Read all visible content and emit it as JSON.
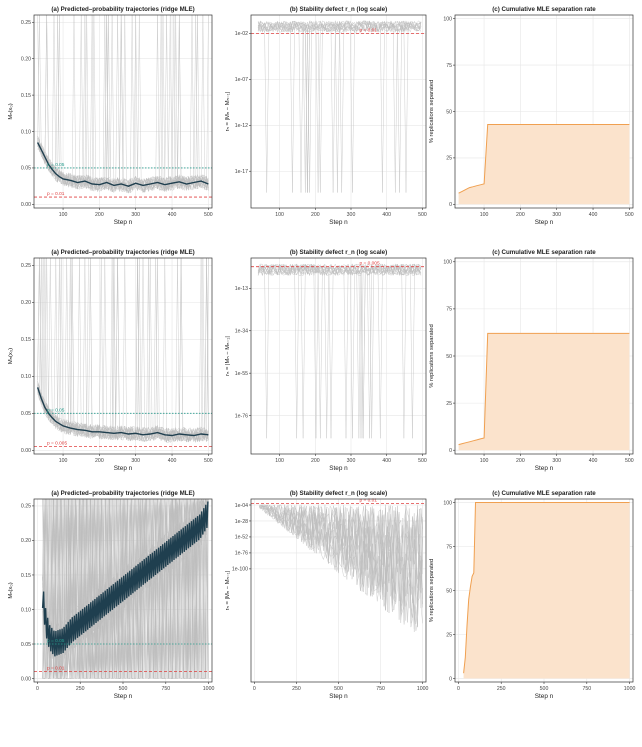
{
  "colors": {
    "trajectory_mean": "#1f3f4f",
    "trajectory_rep": "#bdbdbd",
    "ref_line_teal": "#2a9d8f",
    "ref_line_red": "#e04040",
    "separation_line": "#f0a050",
    "separation_fill": "#fbe3cc",
    "grid": "#e6e6e6",
    "panel_border": "#333333"
  },
  "rows": [
    {
      "panels": [
        {
          "title": "(a) Predicted–probability trajectories (ridge MLE)",
          "xlabel": "Step n",
          "ylabel": "Mₙ(x₀)",
          "xticks": [
            "100",
            "200",
            "300",
            "400",
            "500"
          ],
          "yticks": [
            "0.00",
            "0.05",
            "0.10",
            "0.15",
            "0.20",
            "0.25"
          ],
          "ref_labels": [
            "p = 0.05",
            "p = 0.01"
          ]
        },
        {
          "title": "(b) Stability defect r_n (log scale)",
          "xlabel": "Step n",
          "ylabel": "rₙ = |Mₙ − Mₙ₋₁|",
          "xticks": [
            "100",
            "200",
            "300",
            "400",
            "500"
          ],
          "yticks": [
            "1e-02",
            "1e-07",
            "1e-12",
            "1e-17"
          ],
          "ref_labels": [
            "p = 0.01"
          ]
        },
        {
          "title": "(c) Cumulative MLE separation rate",
          "xlabel": "Step n",
          "ylabel": "% replications separated",
          "xticks": [
            "100",
            "200",
            "300",
            "400",
            "500"
          ],
          "yticks": [
            "0",
            "25",
            "50",
            "75",
            "100"
          ],
          "ref_labels": []
        }
      ]
    },
    {
      "panels": [
        {
          "title": "(a) Predicted–probability trajectories (ridge MLE)",
          "xlabel": "Step n",
          "ylabel": "Mₙ(x₀)",
          "xticks": [
            "100",
            "200",
            "300",
            "400",
            "500"
          ],
          "yticks": [
            "0.00",
            "0.05",
            "0.10",
            "0.15",
            "0.20",
            "0.25"
          ],
          "ref_labels": [
            "p = 0.05",
            "p = 0.005"
          ]
        },
        {
          "title": "(b) Stability defect r_n (log scale)",
          "xlabel": "Step n",
          "ylabel": "rₙ = |Mₙ − Mₙ₋₁|",
          "xticks": [
            "100",
            "200",
            "300",
            "400",
            "500"
          ],
          "yticks": [
            "1e-13",
            "1e-34",
            "1e-55",
            "1e-76"
          ],
          "ref_labels": [
            "p = 0.005"
          ]
        },
        {
          "title": "(c) Cumulative MLE separation rate",
          "xlabel": "Step n",
          "ylabel": "% replications separated",
          "xticks": [
            "100",
            "200",
            "300",
            "400",
            "500"
          ],
          "yticks": [
            "0",
            "25",
            "50",
            "75",
            "100"
          ],
          "ref_labels": []
        }
      ]
    },
    {
      "panels": [
        {
          "title": "(a) Predicted–probability trajectories (ridge MLE)",
          "xlabel": "Step n",
          "ylabel": "Mₙ(x₀)",
          "xticks": [
            "0",
            "250",
            "500",
            "750",
            "1000"
          ],
          "yticks": [
            "0.00",
            "0.05",
            "0.10",
            "0.15",
            "0.20",
            "0.25"
          ],
          "ref_labels": [
            "p = 0.05",
            "p = 0.01"
          ]
        },
        {
          "title": "(b) Stability defect r_n (log scale)",
          "xlabel": "Step n",
          "ylabel": "rₙ = |Mₙ − Mₙ₋₁|",
          "xticks": [
            "0",
            "250",
            "500",
            "750",
            "1000"
          ],
          "yticks": [
            "1e-04",
            "1e-28",
            "1e-52",
            "1e-76",
            "1e-100"
          ],
          "ref_labels": [
            "p = 0.01"
          ]
        },
        {
          "title": "(c) Cumulative MLE separation rate",
          "xlabel": "Step n",
          "ylabel": "% replications separated",
          "xticks": [
            "0",
            "250",
            "500",
            "750",
            "1000"
          ],
          "yticks": [
            "0",
            "25",
            "50",
            "75",
            "100"
          ],
          "ref_labels": []
        }
      ]
    }
  ],
  "chart_data": [
    {
      "type": "line",
      "title": "(a) Predicted–probability trajectories (ridge MLE)",
      "xlabel": "Step n",
      "ylabel": "Mₙ(x₀)",
      "xlim": [
        20,
        510
      ],
      "ylim": [
        -0.005,
        0.26
      ],
      "reference_lines": [
        {
          "label": "p = 0.05",
          "y": 0.05,
          "style": "dotted",
          "color": "#2a9d8f"
        },
        {
          "label": "p = 0.01",
          "y": 0.01,
          "style": "dashed",
          "color": "#e04040"
        }
      ],
      "series": [
        {
          "x": [
            30,
            40,
            50,
            60,
            70,
            80,
            90,
            100,
            120,
            140,
            160,
            180,
            200,
            220,
            240,
            260,
            280,
            300,
            320,
            340,
            360,
            380,
            400,
            420,
            440,
            460,
            480,
            500
          ],
          "values": [
            0.085,
            0.075,
            0.065,
            0.055,
            0.048,
            0.042,
            0.038,
            0.035,
            0.033,
            0.03,
            0.032,
            0.028,
            0.027,
            0.03,
            0.026,
            0.028,
            0.025,
            0.029,
            0.026,
            0.028,
            0.03,
            0.027,
            0.029,
            0.031,
            0.028,
            0.03,
            0.032,
            0.028
          ]
        }
      ]
    },
    {
      "type": "line",
      "title": "(b) Stability defect r_n (log scale)",
      "xlabel": "Step n",
      "ylabel": "rₙ = |Mₙ − Mₙ₋₁|",
      "scale": "log",
      "xlim": [
        20,
        510
      ],
      "ylim_log10": [
        -21,
        0
      ],
      "reference_lines": [
        {
          "label": "p = 0.01",
          "y": 0.01,
          "style": "dashed",
          "color": "#e04040"
        }
      ],
      "series": []
    },
    {
      "type": "area",
      "title": "(c) Cumulative MLE separation rate",
      "xlabel": "Step n",
      "ylabel": "% replications separated",
      "xlim": [
        20,
        510
      ],
      "ylim": [
        -2,
        102
      ],
      "series": [
        {
          "x": [
            30,
            40,
            50,
            60,
            70,
            80,
            90,
            100,
            110,
            500
          ],
          "values": [
            6,
            7,
            8,
            9,
            9.5,
            10,
            10.5,
            11,
            43,
            43
          ]
        }
      ]
    },
    {
      "type": "line",
      "title": "(a) Predicted–probability trajectories (ridge MLE)",
      "xlabel": "Step n",
      "ylabel": "Mₙ(x₀)",
      "xlim": [
        20,
        510
      ],
      "ylim": [
        -0.005,
        0.26
      ],
      "reference_lines": [
        {
          "label": "p = 0.05",
          "y": 0.05,
          "style": "dotted",
          "color": "#2a9d8f"
        },
        {
          "label": "p = 0.005",
          "y": 0.005,
          "style": "dashed",
          "color": "#e04040"
        }
      ],
      "series": [
        {
          "x": [
            30,
            40,
            50,
            60,
            70,
            80,
            90,
            100,
            120,
            140,
            160,
            180,
            200,
            220,
            240,
            260,
            280,
            300,
            320,
            340,
            360,
            380,
            400,
            420,
            440,
            460,
            480,
            500
          ],
          "values": [
            0.085,
            0.07,
            0.058,
            0.05,
            0.044,
            0.039,
            0.036,
            0.033,
            0.03,
            0.028,
            0.027,
            0.025,
            0.025,
            0.024,
            0.023,
            0.024,
            0.022,
            0.023,
            0.021,
            0.022,
            0.024,
            0.021,
            0.02,
            0.022,
            0.021,
            0.02,
            0.022,
            0.021
          ]
        }
      ]
    },
    {
      "type": "line",
      "title": "(b) Stability defect r_n (log scale)",
      "xlabel": "Step n",
      "ylabel": "rₙ = |Mₙ − Mₙ₋₁|",
      "scale": "log",
      "xlim": [
        20,
        510
      ],
      "ylim_log10": [
        -95,
        2
      ],
      "reference_lines": [
        {
          "label": "p = 0.005",
          "y": 0.005,
          "style": "dashed",
          "color": "#e04040"
        }
      ],
      "series": []
    },
    {
      "type": "area",
      "title": "(c) Cumulative MLE separation rate",
      "xlabel": "Step n",
      "ylabel": "% replications separated",
      "xlim": [
        20,
        510
      ],
      "ylim": [
        -2,
        102
      ],
      "series": [
        {
          "x": [
            30,
            40,
            50,
            60,
            70,
            80,
            90,
            100,
            110,
            500
          ],
          "values": [
            3,
            3.5,
            4,
            4.5,
            5,
            5.5,
            6,
            6.5,
            62,
            62
          ]
        }
      ]
    },
    {
      "type": "line",
      "title": "(a) Predicted–probability trajectories (ridge MLE)",
      "xlabel": "Step n",
      "ylabel": "Mₙ(x₀)",
      "xlim": [
        -20,
        1020
      ],
      "ylim": [
        -0.005,
        0.26
      ],
      "reference_lines": [
        {
          "label": "p = 0.05",
          "y": 0.05,
          "style": "dotted",
          "color": "#2a9d8f"
        },
        {
          "label": "p = 0.01",
          "y": 0.01,
          "style": "dashed",
          "color": "#e04040"
        }
      ],
      "series": [
        {
          "x": [
            30,
            50,
            70,
            100,
            150,
            200,
            250,
            300,
            350,
            400,
            450,
            500,
            550,
            600,
            650,
            700,
            750,
            800,
            850,
            900,
            950,
            1000
          ],
          "values": [
            0.12,
            0.08,
            0.06,
            0.05,
            0.055,
            0.07,
            0.08,
            0.09,
            0.1,
            0.11,
            0.12,
            0.13,
            0.14,
            0.15,
            0.16,
            0.17,
            0.18,
            0.19,
            0.2,
            0.21,
            0.22,
            0.24
          ]
        }
      ]
    },
    {
      "type": "line",
      "title": "(b) Stability defect r_n (log scale)",
      "xlabel": "Step n",
      "ylabel": "rₙ = |Mₙ − Mₙ₋₁|",
      "scale": "log",
      "xlim": [
        -20,
        1020
      ],
      "ylim_log10": [
        -270,
        5
      ],
      "reference_lines": [
        {
          "label": "p = 0.01",
          "y": 0.01,
          "style": "dashed",
          "color": "#e04040"
        }
      ],
      "series": []
    },
    {
      "type": "area",
      "title": "(c) Cumulative MLE separation rate",
      "xlabel": "Step n",
      "ylabel": "% replications separated",
      "xlim": [
        -20,
        1020
      ],
      "ylim": [
        -2,
        102
      ],
      "series": [
        {
          "x": [
            30,
            40,
            50,
            60,
            70,
            80,
            90,
            100,
            1000
          ],
          "values": [
            3,
            12,
            30,
            45,
            52,
            58,
            60,
            100,
            100
          ]
        }
      ]
    }
  ]
}
